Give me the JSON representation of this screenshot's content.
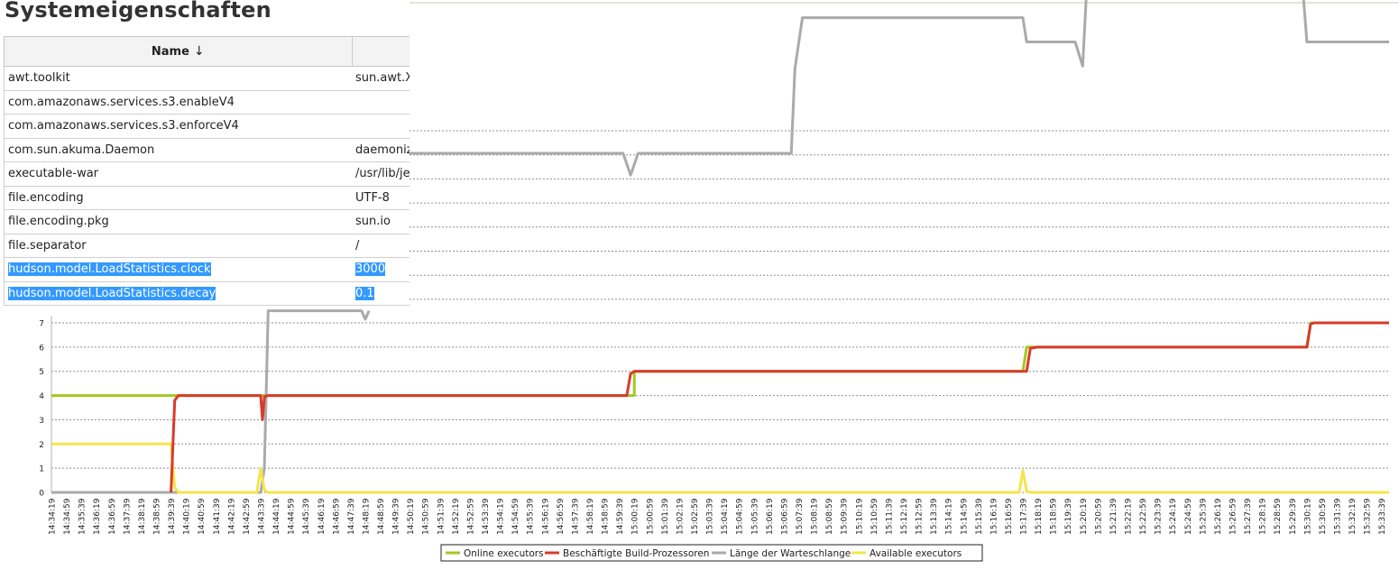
{
  "page": {
    "title": "Systemeigenschaften"
  },
  "table": {
    "columns": [
      {
        "label": "Name",
        "sort_indicator": "↓"
      },
      {
        "label": ""
      }
    ],
    "rows": [
      {
        "name": "awt.toolkit",
        "value": "sun.awt.X",
        "selected": false
      },
      {
        "name": "com.amazonaws.services.s3.enableV4",
        "value": "",
        "selected": false
      },
      {
        "name": "com.amazonaws.services.s3.enforceV4",
        "value": "",
        "selected": false
      },
      {
        "name": "com.sun.akuma.Daemon",
        "value": "daemoniz",
        "selected": false
      },
      {
        "name": "executable-war",
        "value": "/usr/lib/jen",
        "selected": false
      },
      {
        "name": "file.encoding",
        "value": "UTF-8",
        "selected": false
      },
      {
        "name": "file.encoding.pkg",
        "value": "sun.io",
        "selected": false
      },
      {
        "name": "file.separator",
        "value": "/",
        "selected": false
      },
      {
        "name": "hudson.model.LoadStatistics.clock",
        "value": "3000",
        "selected": true
      },
      {
        "name": "hudson.model.LoadStatistics.decay",
        "value": "0.1",
        "selected": true
      }
    ]
  },
  "chart_data": {
    "type": "line",
    "title": "",
    "xlabel": "",
    "ylabel": "",
    "ylim": [
      0,
      7
    ],
    "yticks": [
      0,
      1,
      2,
      3,
      4,
      5,
      6,
      7
    ],
    "grid": true,
    "legend_position": "bottom",
    "x": [
      "14:34:19",
      "14:34:59",
      "14:35:39",
      "14:36:19",
      "14:36:59",
      "14:37:39",
      "14:38:19",
      "14:38:59",
      "14:39:39",
      "14:40:19",
      "14:40:59",
      "14:41:39",
      "14:42:19",
      "14:42:59",
      "14:43:39",
      "14:44:19",
      "14:44:59",
      "14:45:39",
      "14:46:19",
      "14:46:59",
      "14:47:39",
      "14:48:19",
      "14:48:59",
      "14:49:39",
      "14:50:19",
      "14:50:59",
      "14:51:39",
      "14:52:19",
      "14:52:59",
      "14:53:39",
      "14:54:19",
      "14:54:59",
      "14:55:39",
      "14:56:19",
      "14:56:59",
      "14:57:39",
      "14:58:19",
      "14:58:59",
      "14:59:39",
      "15:00:19",
      "15:00:59",
      "15:01:39",
      "15:02:19",
      "15:02:59",
      "15:03:39",
      "15:04:19",
      "15:04:59",
      "15:05:39",
      "15:06:19",
      "15:06:59",
      "15:07:39",
      "15:08:19",
      "15:08:59",
      "15:09:39",
      "15:10:19",
      "15:10:59",
      "15:11:39",
      "15:12:19",
      "15:12:59",
      "15:13:39",
      "15:14:19",
      "15:14:59",
      "15:15:39",
      "15:16:19",
      "15:16:59",
      "15:17:39",
      "15:18:19",
      "15:18:59",
      "15:19:39",
      "15:20:19",
      "15:20:59",
      "15:21:39",
      "15:22:19",
      "15:22:59",
      "15:23:39",
      "15:24:19",
      "15:24:59",
      "15:25:39",
      "15:26:19",
      "15:26:59",
      "15:27:39",
      "15:28:19",
      "15:28:59",
      "15:29:39",
      "15:30:19",
      "15:30:59",
      "15:31:39",
      "15:32:19",
      "15:32:59",
      "15:33:39"
    ],
    "x_tick_labels": [
      "14:34:19",
      "14:34:59",
      "14:35:39",
      "14:36:19",
      "14:36:59",
      "14:37:39",
      "14:38:19",
      "14:38:59",
      "14:39:39",
      "14:40:19",
      "14:40:59",
      "14:41:39",
      "14:42:19",
      "14:42:59",
      "14:43:39",
      "14:44:19",
      "14:44:59",
      "14:45:39",
      "14:46:19",
      "14:46:59",
      "14:47:39",
      "14:48:19",
      "14:48:59",
      "14:49:39",
      "14:50:19",
      "14:50:59",
      "14:51:39",
      "14:52:19",
      "14:52:59",
      "14:53:39",
      "14:54:19",
      "14:54:59",
      "14:55:39",
      "14:56:19",
      "14:56:59",
      "14:57:39",
      "14:58:19",
      "14:58:59",
      "14:59:39",
      "15:00:19",
      "15:00:59",
      "15:01:39",
      "15:02:19",
      "15:02:59",
      "15:03:39",
      "15:04:19",
      "15:04:59",
      "15:05:39",
      "15:06:19",
      "15:06:59",
      "15:07:39",
      "15:08:19",
      "15:08:59",
      "15:09:39",
      "15:10:19",
      "15:10:59",
      "15:11:39",
      "15:12:19",
      "15:12:59",
      "15:13:39",
      "15:14:19",
      "15:14:59",
      "15:15:39",
      "15:16:19",
      "15:16:59",
      "15:17:39",
      "15:18:19",
      "15:18:59",
      "15:19:39",
      "15:20:19",
      "15:20:59",
      "15:21:39",
      "15:22:19",
      "15:22:59",
      "15:23:39",
      "15:24:19",
      "15:24:59",
      "15:25:39",
      "15:26:19",
      "15:26:59",
      "15:27:39",
      "15:28:19",
      "15:28:59",
      "15:29:39",
      "15:30:19",
      "15:30:59",
      "15:31:39",
      "15:32:19",
      "15:32:59",
      "15:33:39"
    ],
    "series": [
      {
        "name": "Online executors",
        "color": "#a2c81e",
        "stroke_width": 3,
        "points": [
          [
            "14:34:19",
            4
          ],
          [
            "14:39:39",
            4
          ],
          [
            "14:39:59",
            4
          ],
          [
            "14:43:39",
            4
          ],
          [
            "14:43:59",
            4
          ],
          [
            "15:00:19",
            4
          ],
          [
            "15:00:19",
            5
          ],
          [
            "15:17:39",
            5
          ],
          [
            "15:17:49",
            6
          ],
          [
            "15:30:19",
            6
          ],
          [
            "15:30:29",
            7
          ],
          [
            "15:33:59",
            7
          ]
        ]
      },
      {
        "name": "Beschäftigte Build-Prozessoren",
        "color": "#d93a2b",
        "stroke_width": 3,
        "points": [
          [
            "14:39:39",
            0
          ],
          [
            "14:39:49",
            3.8
          ],
          [
            "14:39:59",
            4
          ],
          [
            "14:43:39",
            4
          ],
          [
            "14:43:44",
            3
          ],
          [
            "14:43:49",
            3.95
          ],
          [
            "14:43:59",
            4
          ],
          [
            "14:59:59",
            4
          ],
          [
            "15:00:09",
            4.9
          ],
          [
            "15:00:19",
            5
          ],
          [
            "15:17:49",
            5
          ],
          [
            "15:17:59",
            5.95
          ],
          [
            "15:18:19",
            6
          ],
          [
            "15:30:19",
            6
          ],
          [
            "15:30:29",
            6.95
          ],
          [
            "15:30:39",
            7
          ],
          [
            "15:33:59",
            7
          ]
        ]
      },
      {
        "name": "Länge der Warteschlange",
        "color": "#aaaaaa",
        "stroke_width": 3,
        "points": [
          [
            "14:34:19",
            0
          ],
          [
            "14:43:39",
            0
          ],
          [
            "14:43:49",
            1
          ],
          [
            "14:43:59",
            7.5
          ],
          [
            "14:45:09",
            7.5
          ],
          [
            "14:48:09",
            7.5
          ],
          [
            "14:48:19",
            7.15
          ],
          [
            "14:48:29",
            7.5
          ]
        ]
      },
      {
        "name": "Available executors",
        "color": "#f5e44b",
        "stroke_width": 3,
        "points": [
          [
            "14:34:19",
            2
          ],
          [
            "14:39:39",
            2
          ],
          [
            "14:39:49",
            0.2
          ],
          [
            "14:39:59",
            0
          ],
          [
            "14:43:29",
            0
          ],
          [
            "14:43:39",
            1
          ],
          [
            "14:43:49",
            0.1
          ],
          [
            "14:43:59",
            0
          ],
          [
            "15:17:29",
            0
          ],
          [
            "15:17:39",
            0.9
          ],
          [
            "15:17:49",
            0.05
          ],
          [
            "15:17:59",
            0
          ],
          [
            "15:33:59",
            0
          ]
        ]
      }
    ],
    "queue_overlay_steps": [
      [
        "14:44:19",
        14
      ],
      [
        "14:59:49",
        14
      ],
      [
        "15:00:09",
        13.1
      ],
      [
        "15:00:29",
        14
      ],
      [
        "15:07:19",
        14
      ],
      [
        "15:07:29",
        17.5
      ],
      [
        "15:07:49",
        19.6
      ],
      [
        "15:17:39",
        19.6
      ],
      [
        "15:17:49",
        18.6
      ],
      [
        "15:19:59",
        18.6
      ],
      [
        "15:20:19",
        17.6
      ],
      [
        "15:20:29",
        20.6
      ],
      [
        "15:30:09",
        20.6
      ],
      [
        "15:30:19",
        18.6
      ],
      [
        "15:33:59",
        18.6
      ]
    ],
    "legend": [
      "Online executors",
      "Beschäftigte Build-Prozessoren",
      "Länge der Warteschlange",
      "Available executors"
    ]
  }
}
